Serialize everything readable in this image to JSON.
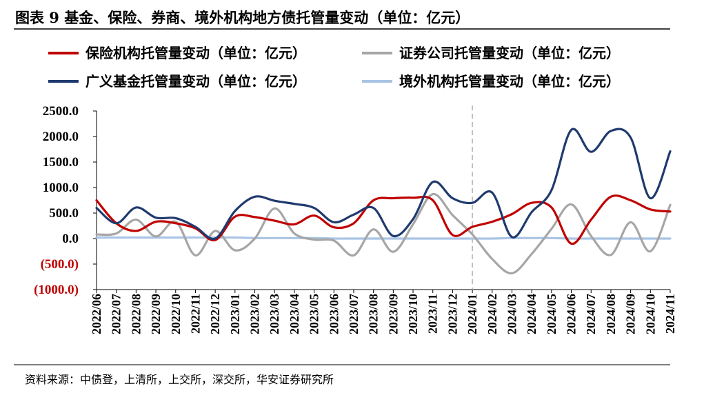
{
  "title": "图表 9 基金、保险、券商、境外机构地方债托管量变动（单位：亿元）",
  "source": "资料来源：中债登，上清所，上交所，深交所，华安证券研究所",
  "chart_data": {
    "type": "line",
    "categories": [
      "2022/06",
      "2022/07",
      "2022/08",
      "2022/09",
      "2022/10",
      "2022/11",
      "2022/12",
      "2023/01",
      "2023/02",
      "2023/03",
      "2023/04",
      "2023/05",
      "2023/06",
      "2023/07",
      "2023/08",
      "2023/09",
      "2023/10",
      "2023/11",
      "2023/12",
      "2024/01",
      "2024/02",
      "2024/03",
      "2024/04",
      "2024/05",
      "2024/06",
      "2024/07",
      "2024/08",
      "2024/09",
      "2024/10",
      "2024/11"
    ],
    "ylim": [
      -1000,
      2500
    ],
    "yticks": [
      {
        "value": 2500,
        "label": "2500.0"
      },
      {
        "value": 2000,
        "label": "2000.0"
      },
      {
        "value": 1500,
        "label": "1500.0"
      },
      {
        "value": 1000,
        "label": "1000.0"
      },
      {
        "value": 500,
        "label": "500.0"
      },
      {
        "value": 0,
        "label": "0.0"
      },
      {
        "value": -500,
        "label": "(500.0)"
      },
      {
        "value": -1000,
        "label": "(1000.0)"
      }
    ],
    "negative_tick_color": "#c00000",
    "divider_after": "2023/12",
    "legend_position": "top",
    "series": [
      {
        "name": "保险机构托管量变动（单位：亿元）",
        "color": "#c00000",
        "values": [
          750,
          300,
          150,
          330,
          300,
          200,
          -30,
          430,
          420,
          350,
          280,
          450,
          220,
          300,
          750,
          790,
          800,
          750,
          70,
          230,
          330,
          480,
          700,
          610,
          -100,
          370,
          820,
          750,
          570,
          530
        ]
      },
      {
        "name": "证券公司托管量变动（单位：亿元）",
        "color": "#a6a6a6",
        "values": [
          80,
          100,
          370,
          40,
          330,
          -330,
          150,
          -230,
          0,
          590,
          100,
          -20,
          -40,
          -330,
          180,
          -260,
          280,
          870,
          460,
          80,
          -400,
          -680,
          -300,
          190,
          670,
          50,
          -320,
          320,
          -250,
          660
        ]
      },
      {
        "name": "广义基金托管量变动（单位：亿元）",
        "color": "#1f3a6e",
        "values": [
          600,
          300,
          610,
          410,
          400,
          230,
          0,
          540,
          820,
          740,
          680,
          600,
          320,
          470,
          600,
          50,
          380,
          1110,
          790,
          700,
          900,
          30,
          520,
          950,
          2130,
          1700,
          2110,
          1980,
          790,
          1710
        ]
      },
      {
        "name": "境外机构托管量变动（单位：亿元）",
        "color": "#a9c4e4",
        "values": [
          20,
          20,
          20,
          20,
          20,
          20,
          20,
          20,
          10,
          10,
          10,
          10,
          0,
          0,
          0,
          0,
          0,
          0,
          0,
          0,
          0,
          10,
          10,
          10,
          0,
          0,
          0,
          0,
          0,
          0
        ]
      }
    ]
  }
}
